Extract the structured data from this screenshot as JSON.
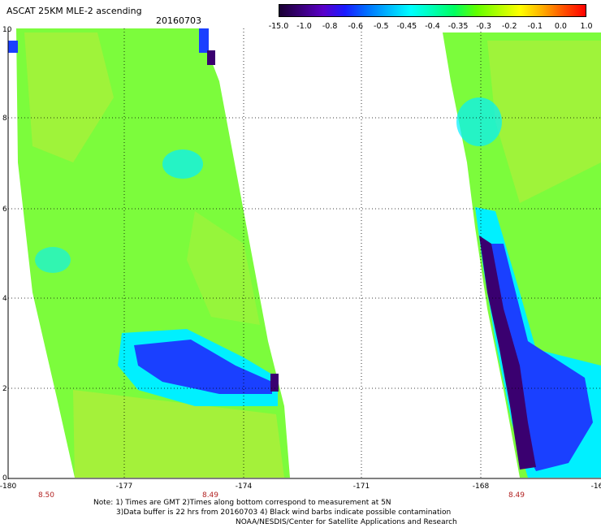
{
  "title": "ASCAT 25KM MLE-2 ascending",
  "date": "20160703",
  "colorbar": {
    "colors": [
      "#1a0033",
      "#3a007a",
      "#5a00c8",
      "#1a1aff",
      "#0070ff",
      "#00b8ff",
      "#00ffff",
      "#00ffb4",
      "#00ff60",
      "#60ff00",
      "#b0ff00",
      "#ffff00",
      "#ffb000",
      "#ff5000",
      "#ff0000"
    ],
    "labels": [
      "-15.0",
      "-1.0",
      "-0.8",
      "-0.6",
      "-0.5",
      "-0.45",
      "-0.4",
      "-0.35",
      "-0.3",
      "-0.2",
      "-0.1",
      "0.0",
      "1.0"
    ]
  },
  "axes": {
    "x_ticks": [
      "-180",
      "-177",
      "-174",
      "-171",
      "-168",
      "-16"
    ],
    "y_ticks": [
      "10",
      "8",
      "6",
      "4",
      "2",
      "0"
    ]
  },
  "pass_times": [
    "8.50",
    "8.49",
    "8.49"
  ],
  "notes": [
    "Note: 1) Times are GMT 2)Times along bottom correspond to measurement at 5N",
    "3)Data buffer is 22 hrs from 20160703 4) Black wind barbs indicate possible contamination",
    "NOAA/NESDIS/Center for Satellite Applications and Research"
  ],
  "swath_colors": {
    "green": "#7cfc3c",
    "yellow_green": "#a8f03a",
    "cyan": "#00f0ff",
    "blue": "#1a40ff",
    "purple": "#3a0070"
  }
}
